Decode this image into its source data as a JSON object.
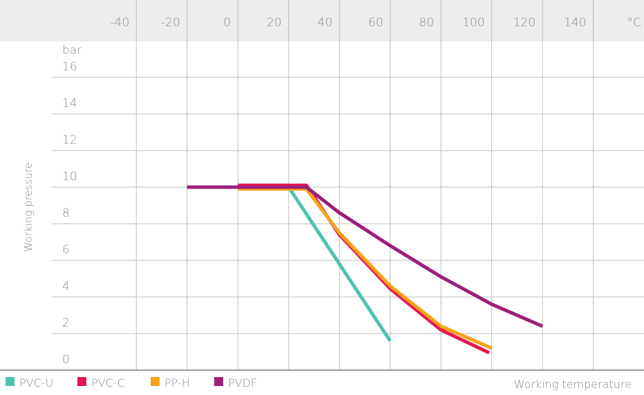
{
  "chart_data": {
    "type": "line",
    "y_unit": "bar",
    "x_unit": "°C",
    "y_label": "Working pressure",
    "x_label": "Working temperature",
    "xlim": [
      -73.3,
      160
    ],
    "xticks": [
      -40,
      -20,
      0,
      20,
      40,
      60,
      80,
      100,
      120,
      140
    ],
    "ylim": [
      0,
      18
    ],
    "yticks": [
      0,
      2,
      4,
      6,
      8,
      10,
      12,
      14,
      16
    ],
    "grid": true,
    "legend": "bottom-left",
    "series": [
      {
        "name": "PVC-U",
        "color": "#4cc2b2",
        "x": [
          0,
          20,
          60
        ],
        "values": [
          10,
          10,
          1.6
        ]
      },
      {
        "name": "PVC-C",
        "color": "#e8174f",
        "x": [
          0,
          27,
          40,
          60,
          80,
          99
        ],
        "values": [
          10.1,
          10.1,
          7.4,
          4.45,
          2.2,
          0.95
        ]
      },
      {
        "name": "PP-H",
        "color": "#f9a21b",
        "x": [
          0,
          27,
          40,
          60,
          80,
          100
        ],
        "values": [
          9.9,
          9.9,
          7.5,
          4.6,
          2.4,
          1.2
        ]
      },
      {
        "name": "PVDF",
        "color": "#9b1f7a",
        "x": [
          -20,
          27,
          40,
          60,
          80,
          100,
          120
        ],
        "values": [
          10,
          10,
          8.6,
          6.8,
          5.1,
          3.6,
          2.4
        ]
      }
    ]
  }
}
